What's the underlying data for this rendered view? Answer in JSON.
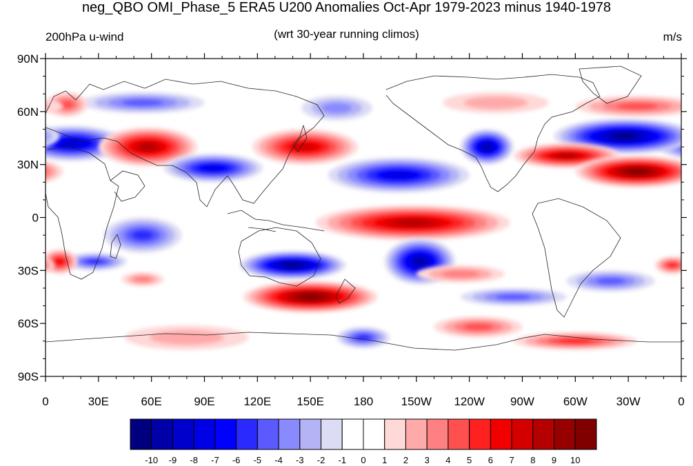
{
  "title": "neg_QBO OMI_Phase_5 ERA5 U200 Anomalies Oct-Apr 1979-2023 minus 1940-1978",
  "subtitle_left": "200hPa u-wind",
  "subtitle_center": "(wrt 30-year running climos)",
  "subtitle_right": "m/s",
  "map": {
    "lat_ticks": [
      "90N",
      "60N",
      "30N",
      "0",
      "30S",
      "60S",
      "90S"
    ],
    "lon_ticks": [
      "0",
      "30E",
      "60E",
      "90E",
      "120E",
      "150E",
      "180",
      "150W",
      "120W",
      "90W",
      "60W",
      "30W",
      "0"
    ]
  },
  "colorbar": {
    "labels": [
      "-10",
      "-9",
      "-8",
      "-7",
      "-6",
      "-5",
      "-4",
      "-3",
      "-2",
      "-1",
      "0",
      "1",
      "2",
      "3",
      "4",
      "5",
      "6",
      "7",
      "8",
      "9",
      "10"
    ],
    "colors": [
      "#00007f",
      "#0000a8",
      "#0000cc",
      "#0000e6",
      "#0000ff",
      "#2a2aff",
      "#5a5aff",
      "#8a8aff",
      "#b3b3f5",
      "#dcdcf5",
      "#ffffff",
      "#ffffff",
      "#ffd8d8",
      "#ffaaaa",
      "#ff8080",
      "#ff5050",
      "#ff2020",
      "#f20000",
      "#d40000",
      "#b40000",
      "#960000",
      "#800000"
    ]
  },
  "anomaly_blobs": [
    {
      "lon": 15,
      "lat": 42,
      "rx": 30,
      "ry": 10,
      "value": -8
    },
    {
      "lon": 55,
      "lat": 65,
      "rx": 35,
      "ry": 6,
      "value": -4
    },
    {
      "lon": 165,
      "lat": 62,
      "rx": 20,
      "ry": 7,
      "value": -3
    },
    {
      "lon": 58,
      "lat": 40,
      "rx": 28,
      "ry": 11,
      "value": 8
    },
    {
      "lon": 12,
      "lat": 64,
      "rx": 12,
      "ry": 7,
      "value": 4
    },
    {
      "lon": 147,
      "lat": 40,
      "rx": 30,
      "ry": 10,
      "value": 7
    },
    {
      "lon": 95,
      "lat": 28,
      "rx": 28,
      "ry": 8,
      "value": -7
    },
    {
      "lon": 200,
      "lat": 24,
      "rx": 40,
      "ry": 10,
      "value": -7
    },
    {
      "lon": 250,
      "lat": 40,
      "rx": 15,
      "ry": 10,
      "value": -9
    },
    {
      "lon": 328,
      "lat": 46,
      "rx": 40,
      "ry": 10,
      "value": -10
    },
    {
      "lon": 295,
      "lat": 35,
      "rx": 30,
      "ry": 7,
      "value": 8
    },
    {
      "lon": 335,
      "lat": 26,
      "rx": 35,
      "ry": 9,
      "value": 10
    },
    {
      "lon": 335,
      "lat": 63,
      "rx": 35,
      "ry": 6,
      "value": 4
    },
    {
      "lon": 255,
      "lat": 65,
      "rx": 30,
      "ry": 6,
      "value": 2
    },
    {
      "lon": 208,
      "lat": -3,
      "rx": 55,
      "ry": 10,
      "value": 8
    },
    {
      "lon": 55,
      "lat": -10,
      "rx": 22,
      "ry": 10,
      "value": -5
    },
    {
      "lon": 28,
      "lat": -25,
      "rx": 18,
      "ry": 5,
      "value": -5
    },
    {
      "lon": 140,
      "lat": -27,
      "rx": 30,
      "ry": 8,
      "value": -10
    },
    {
      "lon": 212,
      "lat": -25,
      "rx": 20,
      "ry": 13,
      "value": -9
    },
    {
      "lon": 150,
      "lat": -45,
      "rx": 38,
      "ry": 9,
      "value": 10
    },
    {
      "lon": 8,
      "lat": -25,
      "rx": 10,
      "ry": 7,
      "value": 6
    },
    {
      "lon": 265,
      "lat": -45,
      "rx": 30,
      "ry": 5,
      "value": -4
    },
    {
      "lon": 320,
      "lat": -36,
      "rx": 25,
      "ry": 6,
      "value": -4
    },
    {
      "lon": 235,
      "lat": -32,
      "rx": 25,
      "ry": 5,
      "value": 3
    },
    {
      "lon": 245,
      "lat": -62,
      "rx": 25,
      "ry": 6,
      "value": 4
    },
    {
      "lon": 300,
      "lat": -70,
      "rx": 35,
      "ry": 5,
      "value": 5
    },
    {
      "lon": 180,
      "lat": -68,
      "rx": 15,
      "ry": 6,
      "value": -5
    },
    {
      "lon": 80,
      "lat": -68,
      "rx": 35,
      "ry": 7,
      "value": 2
    },
    {
      "lon": 55,
      "lat": -35,
      "rx": 12,
      "ry": 4,
      "value": 3
    },
    {
      "lon": 355,
      "lat": -27,
      "rx": 10,
      "ry": 5,
      "value": 5
    }
  ]
}
